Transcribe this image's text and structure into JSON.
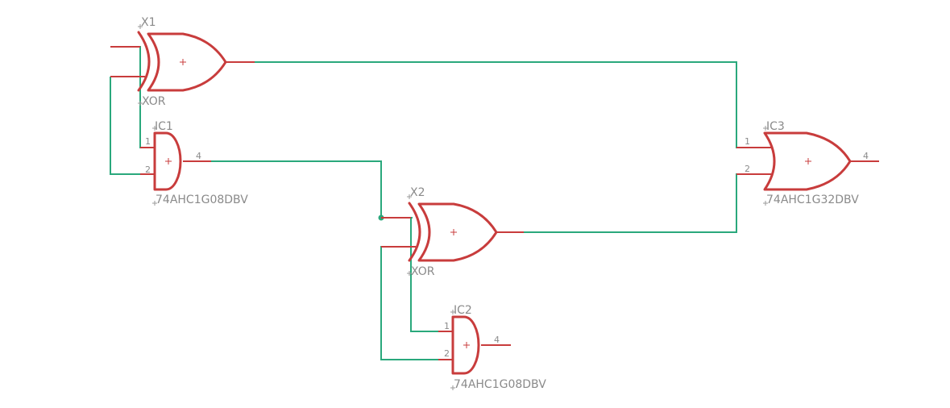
{
  "colors": {
    "gate_stroke": "#c83c3c",
    "net": "#2aa87c",
    "label": "#8a8a8a",
    "background": "#ffffff"
  },
  "parts": {
    "x1": {
      "name": "X1",
      "value": "XOR"
    },
    "x2": {
      "name": "X2",
      "value": "XOR"
    },
    "ic1": {
      "name": "IC1",
      "value": "74AHC1G08DBV",
      "pins": {
        "in1": "1",
        "in2": "2",
        "out": "4"
      }
    },
    "ic2": {
      "name": "IC2",
      "value": "74AHC1G08DBV",
      "pins": {
        "in1": "1",
        "in2": "2",
        "out": "4"
      }
    },
    "ic3": {
      "name": "IC3",
      "value": "74AHC1G32DBV",
      "pins": {
        "in1": "1",
        "in2": "2",
        "out": "4"
      }
    }
  }
}
